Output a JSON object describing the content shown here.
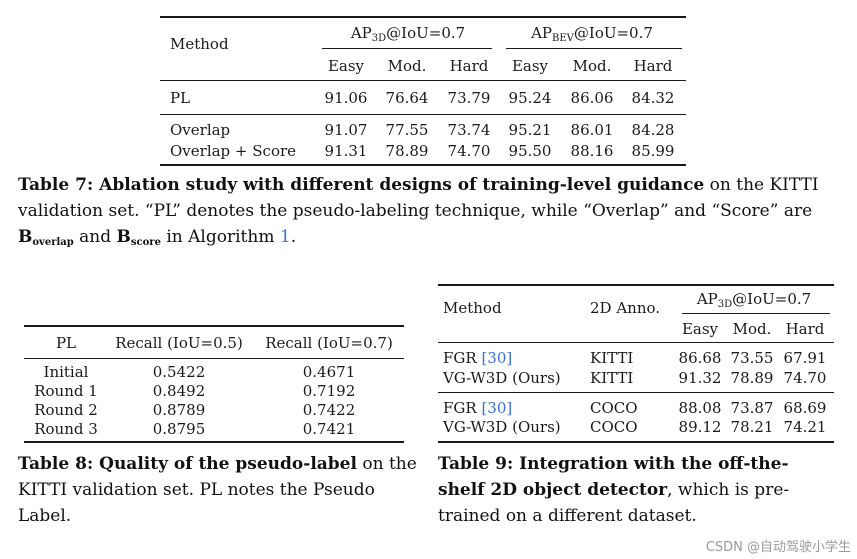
{
  "table7": {
    "header": {
      "method": "Method",
      "group3d_pre": "AP",
      "group3d_sub": "3D",
      "group3d_post": "@IoU=0.7",
      "groupbev_pre": "AP",
      "groupbev_sub": "BEV",
      "groupbev_post": "@IoU=0.7",
      "cols": [
        "Easy",
        "Mod.",
        "Hard",
        "Easy",
        "Mod.",
        "Hard"
      ]
    },
    "rows": [
      {
        "method": "PL",
        "values": [
          "91.06",
          "76.64",
          "73.79",
          "95.24",
          "86.06",
          "84.32"
        ]
      },
      {
        "method": "Overlap",
        "values": [
          "91.07",
          "77.55",
          "73.74",
          "95.21",
          "86.01",
          "84.28"
        ]
      },
      {
        "method": "Overlap + Score",
        "values": [
          "91.31",
          "78.89",
          "74.70",
          "95.50",
          "88.16",
          "85.99"
        ]
      }
    ],
    "caption": {
      "label": "Table 7: Ablation study with different designs of training-level guidance",
      "t1": " on the KITTI validation set. “PL” denotes the pseudo-labeling technique, while “Overlap” and “Score” are ",
      "b1": "B",
      "b1sub": "overlap",
      "t2": " and ",
      "b2": "B",
      "b2sub": "score",
      "t3": " in Algorithm ",
      "ref": "1",
      "t4": "."
    }
  },
  "table8": {
    "header": [
      "PL",
      "Recall (IoU=0.5)",
      "Recall (IoU=0.7)"
    ],
    "rows": [
      [
        "Initial",
        "0.5422",
        "0.4671"
      ],
      [
        "Round 1",
        "0.8492",
        "0.7192"
      ],
      [
        "Round 2",
        "0.8789",
        "0.7422"
      ],
      [
        "Round 3",
        "0.8795",
        "0.7421"
      ]
    ],
    "caption": {
      "label": "Table 8: Quality of the pseudo-label",
      "rest": " on the KITTI validation set. PL notes the Pseudo Label."
    }
  },
  "table9": {
    "header": {
      "method": "Method",
      "anno": "2D Anno.",
      "group_pre": "AP",
      "group_sub": "3D",
      "group_post": "@IoU=0.7",
      "cols": [
        "Easy",
        "Mod.",
        "Hard"
      ]
    },
    "rows": [
      {
        "method": "FGR ",
        "ref": "[30]",
        "anno": "KITTI",
        "values": [
          "86.68",
          "73.55",
          "67.91"
        ]
      },
      {
        "method": "VG-W3D (Ours)",
        "ref": "",
        "anno": "KITTI",
        "values": [
          "91.32",
          "78.89",
          "74.70"
        ]
      },
      {
        "method": "FGR ",
        "ref": "[30]",
        "anno": "COCO",
        "values": [
          "88.08",
          "73.87",
          "68.69"
        ]
      },
      {
        "method": "VG-W3D (Ours)",
        "ref": "",
        "anno": "COCO",
        "values": [
          "89.12",
          "78.21",
          "74.21"
        ]
      }
    ],
    "caption": {
      "label": "Table 9: Integration with the off-the-shelf 2D object detector",
      "rest": ", which is pre-trained on a different dataset."
    }
  },
  "watermark": "CSDN @自动驾驶小学生"
}
